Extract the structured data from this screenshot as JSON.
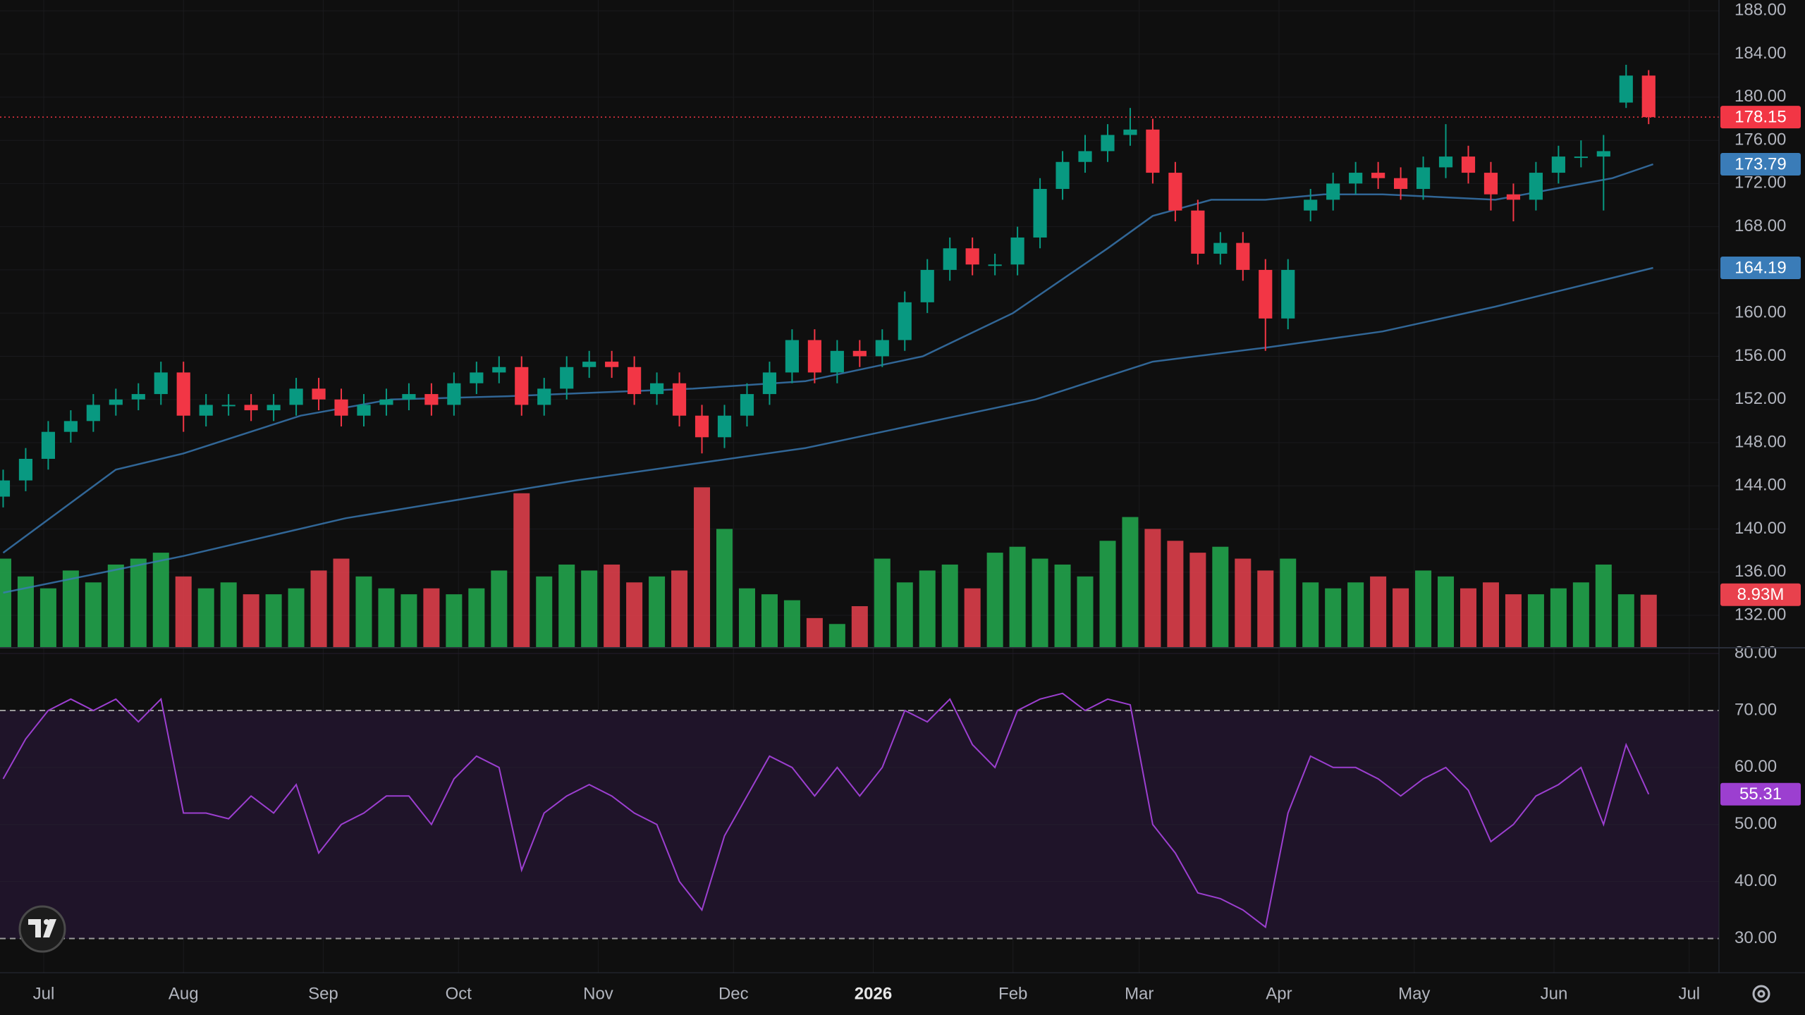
{
  "chart_data": [
    {
      "type": "candlestick",
      "x": [
        -9,
        -4,
        1,
        6,
        11,
        16,
        21,
        26,
        31,
        36,
        41,
        46,
        51,
        56,
        61,
        66,
        71,
        76,
        81,
        86,
        91,
        96,
        101,
        106,
        111,
        116,
        121,
        126,
        131,
        136,
        141,
        146,
        151,
        156,
        161,
        166,
        171,
        176,
        181,
        186,
        191,
        196,
        201,
        206,
        211,
        216,
        221,
        226,
        231,
        236,
        241,
        246,
        251,
        256,
        261,
        266,
        271,
        276,
        281,
        286,
        291,
        296,
        301,
        306,
        311,
        316,
        321,
        326,
        331,
        336,
        341,
        346,
        351,
        356
      ],
      "open": [
        143,
        144.5,
        146.5,
        149,
        150,
        151.5,
        152,
        152.5,
        154.5,
        150.5,
        151.5,
        151.5,
        151,
        151.5,
        153,
        152,
        150.5,
        151.5,
        152,
        152.5,
        151.5,
        153.5,
        154.5,
        155,
        151.5,
        153,
        155,
        155.5,
        155,
        152.5,
        153.5,
        150.5,
        148.5,
        150.5,
        152.5,
        154.5,
        157.5,
        154.5,
        156.5,
        156,
        157.5,
        161,
        164,
        166,
        164.5,
        164.5,
        167,
        171.5,
        174,
        175,
        176.5,
        177,
        173,
        169.5,
        165.5,
        166.5,
        164,
        159.5,
        169.5,
        170.5,
        172,
        173,
        172.5,
        171.5,
        173.5,
        174.5,
        173,
        171,
        170.5,
        173,
        174.5,
        174.5,
        179.5,
        182
      ],
      "high": [
        145.5,
        147.5,
        150,
        151,
        152.5,
        153,
        153.5,
        155.5,
        155.5,
        152.5,
        152.5,
        152.5,
        152.5,
        154,
        154,
        153,
        152.5,
        153,
        153.5,
        153.5,
        154.5,
        155.5,
        156,
        156,
        154,
        156,
        156.5,
        156.5,
        156,
        154.5,
        154.5,
        151.5,
        151.5,
        153.5,
        155.5,
        158.5,
        158.5,
        157.5,
        157.5,
        158.5,
        162,
        165,
        167,
        167,
        165.5,
        168,
        172.5,
        175,
        176.5,
        177.5,
        179,
        178,
        174,
        170.5,
        167.5,
        167.5,
        165,
        165,
        171.5,
        173,
        174,
        174,
        173.5,
        174.5,
        177.5,
        175.5,
        174,
        172,
        174,
        175.5,
        176,
        176.5,
        183,
        182.5
      ],
      "low": [
        142,
        143.5,
        145.5,
        148,
        149,
        150.5,
        151,
        151.5,
        149,
        149.5,
        150.5,
        150,
        150,
        150.5,
        151,
        149.5,
        149.5,
        150.5,
        151,
        150.5,
        150.5,
        152.5,
        153.5,
        150.5,
        150.5,
        152,
        154,
        154,
        151.5,
        151.5,
        149.5,
        147,
        147.5,
        149.5,
        151.5,
        153.5,
        153.5,
        153.5,
        155,
        155,
        156.5,
        160,
        163,
        163.5,
        163.5,
        163.5,
        166,
        170.5,
        173,
        174,
        175.5,
        172,
        168.5,
        164.5,
        164.5,
        163,
        156.5,
        158.5,
        168.5,
        169.5,
        171,
        171.5,
        170.5,
        170.5,
        172.5,
        172,
        169.5,
        168.5,
        169.5,
        172,
        173.5,
        169.5,
        179,
        177.5
      ],
      "close": [
        144.5,
        146.5,
        149,
        150,
        151.5,
        152,
        152.5,
        154.5,
        150.5,
        151.5,
        151.5,
        151,
        151.5,
        153,
        152,
        150.5,
        151.5,
        152,
        152.5,
        151.5,
        153.5,
        154.5,
        155,
        151.5,
        153,
        155,
        155.5,
        155,
        152.5,
        153.5,
        150.5,
        148.5,
        150.5,
        152.5,
        154.5,
        157.5,
        154.5,
        156.5,
        156,
        157.5,
        161,
        164,
        166,
        164.5,
        164.5,
        167,
        171.5,
        174,
        175,
        176.5,
        177,
        173,
        169.5,
        165.5,
        166.5,
        164,
        159.5,
        164,
        170.5,
        172,
        173,
        172.5,
        171.5,
        173.5,
        174.5,
        173,
        171,
        170.5,
        173,
        174.5,
        174.5,
        175,
        182,
        178.15
      ],
      "up_color": "#089981",
      "down_color": "#f23645",
      "xlim": [
        -9.7,
        371.6
      ],
      "xticks": [
        {
          "value": 0,
          "label": "Jul"
        },
        {
          "value": 31,
          "label": "Aug"
        },
        {
          "value": 62,
          "label": "Sep"
        },
        {
          "value": 92,
          "label": "Oct"
        },
        {
          "value": 123,
          "label": "Nov"
        },
        {
          "value": 153,
          "label": "Dec"
        },
        {
          "value": 184,
          "label": "2026",
          "bold": true
        },
        {
          "value": 215,
          "label": "Feb"
        },
        {
          "value": 243,
          "label": "Mar"
        },
        {
          "value": 274,
          "label": "Apr"
        },
        {
          "value": 304,
          "label": "May"
        },
        {
          "value": 335,
          "label": "Jun"
        },
        {
          "value": 365,
          "label": "Jul"
        }
      ],
      "ylim": [
        129,
        189
      ],
      "yticks": [
        {
          "value": 132,
          "label": "132.00"
        },
        {
          "value": 136,
          "label": "136.00"
        },
        {
          "value": 140,
          "label": "140.00"
        },
        {
          "value": 144,
          "label": "144.00"
        },
        {
          "value": 148,
          "label": "148.00"
        },
        {
          "value": 152,
          "label": "152.00"
        },
        {
          "value": 156,
          "label": "156.00"
        },
        {
          "value": 160,
          "label": "160.00"
        },
        {
          "value": 164,
          "label": "164.00"
        },
        {
          "value": 168,
          "label": "168.00"
        },
        {
          "value": 172,
          "label": "172.00"
        },
        {
          "value": 176,
          "label": "176.00"
        },
        {
          "value": 180,
          "label": "180.00"
        },
        {
          "value": 184,
          "label": "184.00"
        },
        {
          "value": 188,
          "label": "188.00"
        }
      ],
      "grid": true,
      "moving_averages": [
        {
          "color": "#3a7cb8",
          "x": [
            -9,
            16,
            31,
            57,
            77,
            103,
            144,
            169,
            195,
            215,
            236,
            246,
            259,
            271,
            284,
            297,
            322,
            335,
            348,
            357
          ],
          "values": [
            137.8,
            145.5,
            147,
            150.5,
            152,
            152.3,
            153,
            153.7,
            156,
            160,
            166,
            169,
            170.5,
            170.5,
            171,
            171,
            170.5,
            171.5,
            172.5,
            173.79
          ]
        },
        {
          "color": "#3a7cb8",
          "x": [
            -9,
            31,
            67,
            118,
            169,
            220,
            246,
            271,
            297,
            322,
            357
          ],
          "values": [
            134.1,
            137.5,
            141,
            144.5,
            147.5,
            152,
            155.5,
            156.8,
            158.3,
            160.6,
            164.19
          ]
        }
      ],
      "volume": {
        "values": [
          15,
          12,
          10,
          13,
          11,
          14,
          15,
          16,
          12,
          10,
          11,
          9,
          9,
          10,
          13,
          15,
          12,
          10,
          9,
          10,
          9,
          10,
          13,
          26,
          12,
          14,
          13,
          14,
          11,
          12,
          13,
          27,
          20,
          10,
          9,
          8,
          5,
          4,
          7,
          15,
          11,
          13,
          14,
          10,
          16,
          17,
          15,
          14,
          12,
          18,
          22,
          20,
          18,
          16,
          17,
          15,
          13,
          15,
          11,
          10,
          11,
          12,
          10,
          13,
          12,
          10,
          11,
          9,
          9,
          10,
          11,
          14,
          9,
          8.93
        ],
        "value_labels": [
          null,
          null,
          null,
          null,
          null,
          null,
          null,
          null,
          null,
          null,
          null,
          null,
          null,
          null,
          null,
          null,
          null,
          null,
          null,
          null,
          null,
          null,
          null,
          null,
          null,
          null,
          null,
          null,
          null,
          null,
          null,
          null,
          null,
          null,
          null,
          null,
          null,
          null,
          null,
          null,
          null,
          null,
          null,
          null,
          null,
          null,
          null,
          null,
          null,
          null,
          null,
          null,
          null,
          null,
          null,
          null,
          null,
          null,
          null,
          null,
          null,
          null,
          null,
          null,
          null,
          null,
          null,
          null,
          null,
          null,
          null,
          null,
          null,
          "8.93M"
        ],
        "up_color": "#22ab4f",
        "down_color": "#e8414d",
        "ylim": [
          0,
          109
        ]
      }
    },
    {
      "type": "line",
      "x": [
        -9,
        -4,
        1,
        6,
        11,
        16,
        21,
        26,
        31,
        36,
        41,
        46,
        51,
        56,
        61,
        66,
        71,
        76,
        81,
        86,
        91,
        96,
        101,
        106,
        111,
        116,
        121,
        126,
        131,
        136,
        141,
        146,
        151,
        156,
        161,
        166,
        171,
        176,
        181,
        186,
        191,
        196,
        201,
        206,
        211,
        216,
        221,
        226,
        231,
        236,
        241,
        246,
        251,
        256,
        261,
        266,
        271,
        276,
        281,
        286,
        291,
        296,
        301,
        306,
        311,
        316,
        321,
        326,
        331,
        336,
        341,
        346,
        351,
        356
      ],
      "values": [
        58,
        65,
        70,
        72,
        70,
        72,
        68,
        72,
        52,
        52,
        51,
        55,
        52,
        57,
        45,
        50,
        52,
        55,
        55,
        50,
        58,
        62,
        60,
        42,
        52,
        55,
        57,
        55,
        52,
        50,
        40,
        35,
        48,
        55,
        62,
        60,
        55,
        60,
        55,
        60,
        70,
        68,
        72,
        64,
        60,
        70,
        72,
        73,
        70,
        72,
        71,
        50,
        45,
        38,
        37,
        35,
        32,
        52,
        62,
        60,
        60,
        58,
        55,
        58,
        60,
        56,
        47,
        50,
        55,
        57,
        60,
        50,
        64,
        55.31
      ],
      "color": "#9c3fd0",
      "ylim": [
        24,
        81
      ],
      "yticks": [
        {
          "value": 30,
          "label": "30.00"
        },
        {
          "value": 40,
          "label": "40.00"
        },
        {
          "value": 50,
          "label": "50.00"
        },
        {
          "value": 60,
          "label": "60.00"
        },
        {
          "value": 70,
          "label": "70.00"
        },
        {
          "value": 80,
          "label": "80.00"
        }
      ],
      "band": [
        30,
        70
      ],
      "band_color": "#1f1429",
      "grid": true
    }
  ]
}
